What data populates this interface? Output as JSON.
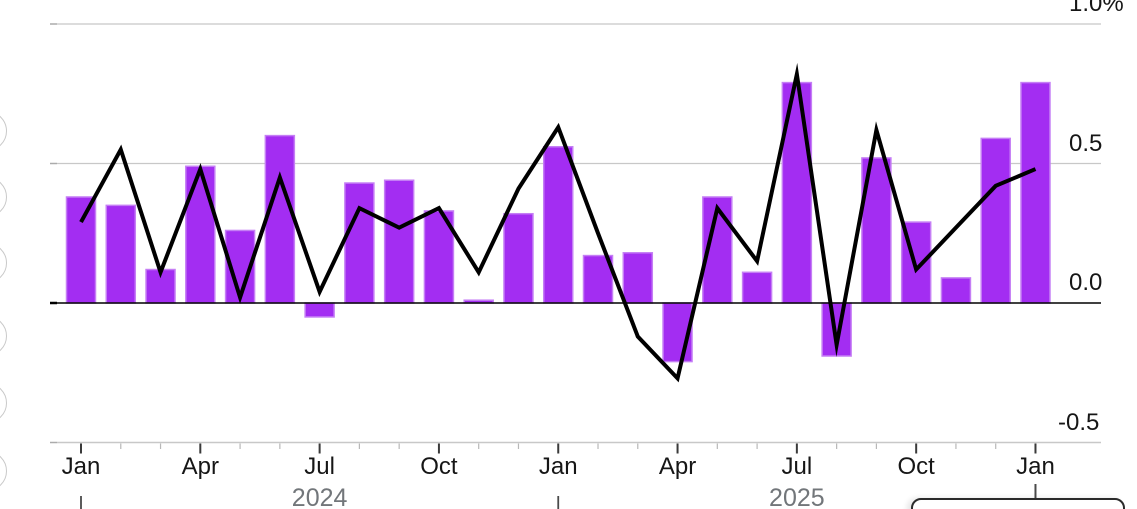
{
  "page": {
    "background": "#ffffff"
  },
  "colors": {
    "bar_fill": "#a32df2",
    "bar_edge": "#c57ef5",
    "line": "#000000",
    "grid": "#c8c8c8",
    "zero_line": "#000000",
    "axis_line": "#c8c8c8",
    "tick_major": "#3a3a3a",
    "tick_minor": "#b8b8b8",
    "y_tick_side": "#ababab",
    "axis_label": "#161616",
    "year_label": "#72767a",
    "year_marker": "#4a4a4a",
    "circle_border": "#c9c9c9",
    "tooltip_border": "#2b2b2b",
    "tooltip_fill": "#ffffff"
  },
  "chart_data": {
    "type": "bar+line",
    "unit": "percent",
    "title": "",
    "x": [
      "Jan 2024",
      "Feb 2024",
      "Mar 2024",
      "Apr 2024",
      "May 2024",
      "Jun 2024",
      "Jul 2024",
      "Aug 2024",
      "Sep 2024",
      "Oct 2024",
      "Nov 2024",
      "Dec 2024",
      "Jan 2025",
      "Feb 2025",
      "Mar 2025",
      "Apr 2025",
      "May 2025",
      "Jun 2025",
      "Jul 2025",
      "Aug 2025",
      "Sep 2025",
      "Oct 2025",
      "Nov 2025",
      "Dec 2025",
      "Jan 2026"
    ],
    "series": [
      {
        "name": "bars",
        "type": "bar",
        "values": [
          0.38,
          0.35,
          0.12,
          0.49,
          0.26,
          0.6,
          -0.05,
          0.43,
          0.44,
          0.33,
          0.01,
          0.32,
          0.56,
          0.17,
          0.18,
          -0.21,
          0.38,
          0.11,
          0.79,
          -0.19,
          0.52,
          0.29,
          0.09,
          0.59,
          0.79
        ]
      },
      {
        "name": "line",
        "type": "line",
        "values": [
          0.29,
          0.55,
          0.11,
          0.48,
          0.02,
          0.45,
          0.04,
          0.34,
          0.27,
          0.34,
          0.11,
          0.41,
          0.63,
          0.25,
          -0.12,
          -0.27,
          0.34,
          0.15,
          0.82,
          -0.15,
          0.62,
          0.12,
          0.27,
          0.42,
          0.48
        ]
      }
    ],
    "y_axis": {
      "side": "right",
      "ticks": [
        {
          "label": "1.0%",
          "value": 1.0
        },
        {
          "label": "0.5",
          "value": 0.5
        },
        {
          "label": "0.0",
          "value": 0.0
        },
        {
          "label": "-0.5",
          "value": -0.5
        }
      ]
    },
    "x_axis": {
      "major_labels": [
        {
          "label": "Jan",
          "month_index": 0
        },
        {
          "label": "Apr",
          "month_index": 3
        },
        {
          "label": "Jul",
          "month_index": 6
        },
        {
          "label": "Oct",
          "month_index": 9
        },
        {
          "label": "Jan",
          "month_index": 12
        },
        {
          "label": "Apr",
          "month_index": 15
        },
        {
          "label": "Jul",
          "month_index": 18
        },
        {
          "label": "Oct",
          "month_index": 21
        },
        {
          "label": "Jan",
          "month_index": 24
        }
      ],
      "year_labels": [
        {
          "label": "2024",
          "month_index": 6
        },
        {
          "label": "2025",
          "month_index": 18
        }
      ],
      "year_marker_month_indices": [
        0,
        12
      ],
      "minor_ticks": "every month"
    },
    "grid": "horizontal",
    "legend": "none visible"
  },
  "decorations": {
    "left_edge_circles": {
      "count": 6
    },
    "tooltip_box": {
      "text": ""
    }
  }
}
